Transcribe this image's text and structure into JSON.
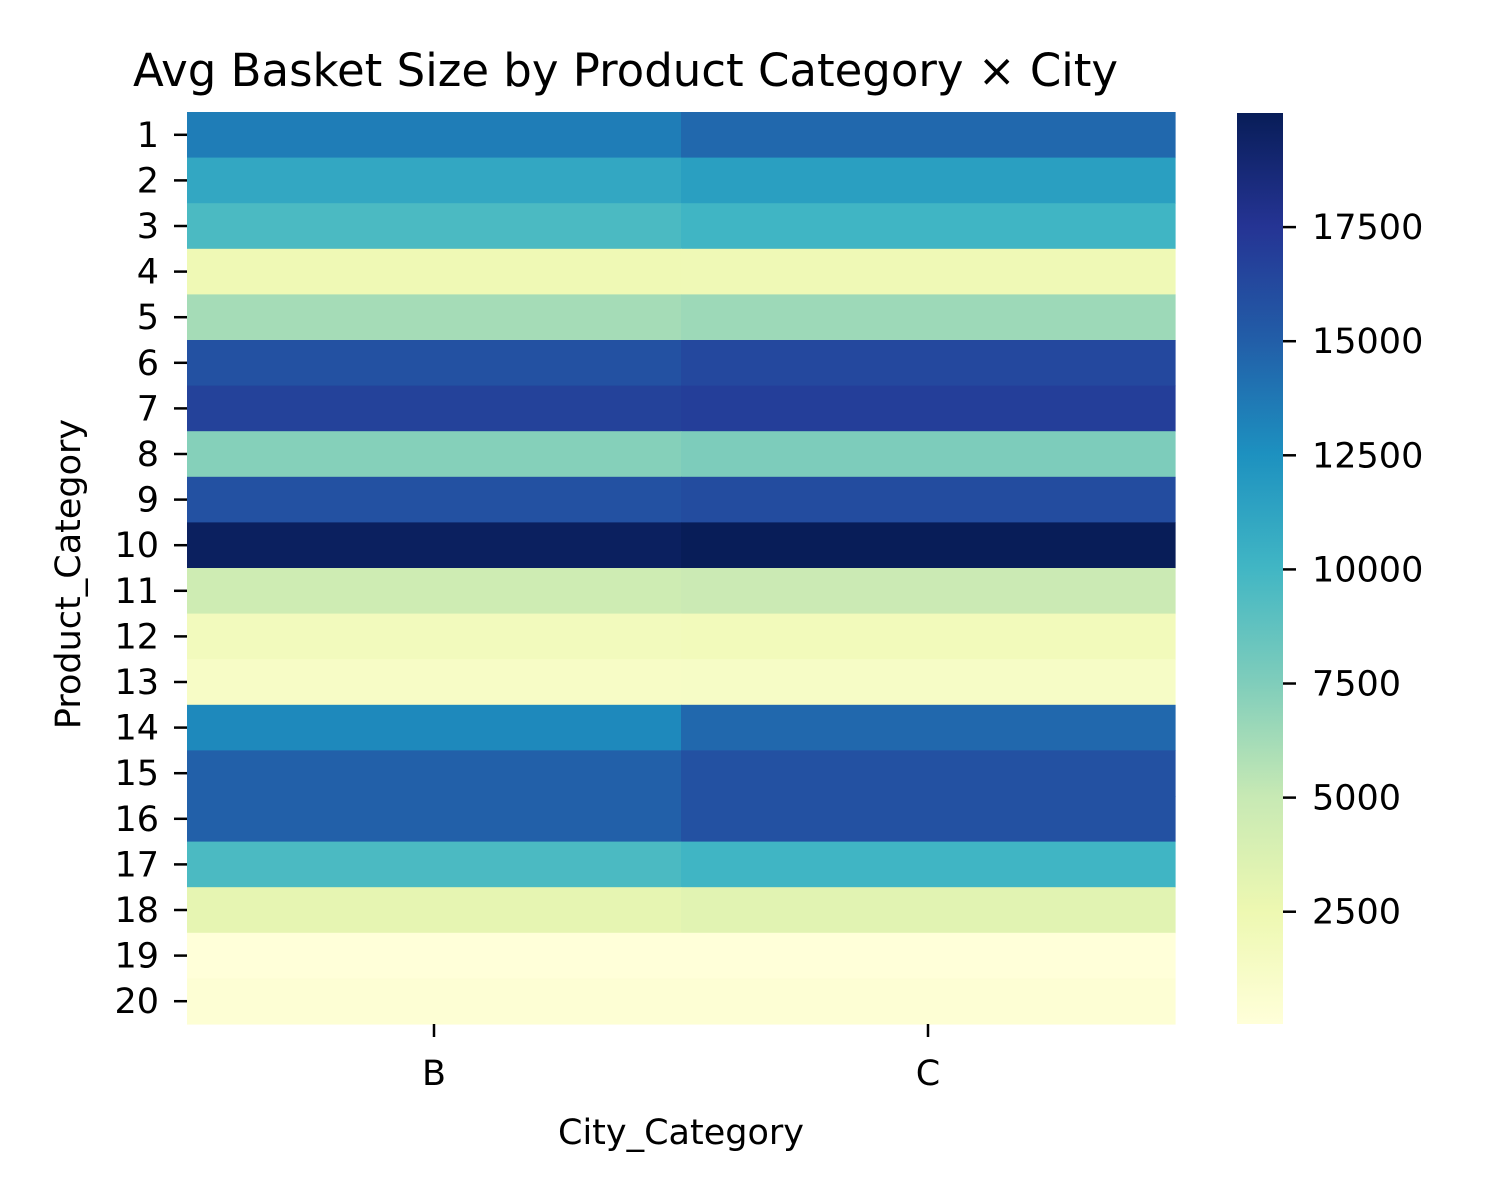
{
  "chart_data": {
    "type": "heatmap",
    "title": "Avg Basket Size by Product Category × City",
    "xlabel": "City_Category",
    "ylabel": "Product_Category",
    "x_categories": [
      "B",
      "C"
    ],
    "y_categories": [
      "1",
      "2",
      "3",
      "4",
      "5",
      "6",
      "7",
      "8",
      "9",
      "10",
      "11",
      "12",
      "13",
      "14",
      "15",
      "16",
      "17",
      "18",
      "19",
      "20"
    ],
    "values": [
      [
        13500,
        14500
      ],
      [
        11000,
        11600
      ],
      [
        9600,
        10100
      ],
      [
        2300,
        2200
      ],
      [
        6200,
        6500
      ],
      [
        15800,
        16300
      ],
      [
        16700,
        16900
      ],
      [
        7300,
        7600
      ],
      [
        15800,
        16100
      ],
      [
        19700,
        20000
      ],
      [
        4600,
        4800
      ],
      [
        1800,
        1900
      ],
      [
        1200,
        1250
      ],
      [
        12900,
        14500
      ],
      [
        14900,
        15800
      ],
      [
        14900,
        15800
      ],
      [
        9600,
        10100
      ],
      [
        3000,
        3300
      ],
      [
        40,
        40
      ],
      [
        370,
        380
      ]
    ],
    "colorbar": {
      "colormap": "YlGnBu",
      "min": 40,
      "max": 20000,
      "ticks": [
        "2500",
        "5000",
        "7500",
        "10000",
        "12500",
        "15000",
        "17500"
      ]
    },
    "grid": false,
    "legend": "colorbar-right"
  }
}
